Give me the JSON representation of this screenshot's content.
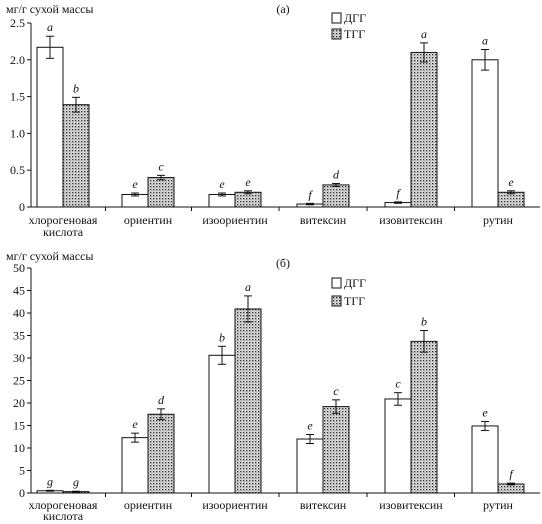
{
  "chart_data": [
    {
      "type": "bar",
      "panel_label": "(а)",
      "ylabel": "мг/г сухой массы",
      "ylim": [
        0,
        2.5
      ],
      "yticks": [
        "0",
        "0.5",
        "1.0",
        "1.5",
        "2.0",
        "2.5"
      ],
      "categories": [
        "хлорогеновая кислота",
        "ориентин",
        "изоориентин",
        "витексин",
        "изовитексин",
        "рутин"
      ],
      "category_lines": [
        [
          "хлорогеновая",
          "кислота"
        ],
        [
          "ориентин"
        ],
        [
          "изоориентин"
        ],
        [
          "витексин"
        ],
        [
          "изовитексин"
        ],
        [
          "рутин"
        ]
      ],
      "legend_position": "top-right",
      "series": [
        {
          "name": "ДГГ",
          "pattern": "white",
          "values": [
            2.17,
            0.17,
            0.17,
            0.04,
            0.06,
            2.0
          ],
          "errors": [
            0.15,
            0.02,
            0.02,
            0.01,
            0.01,
            0.14
          ],
          "letters": [
            "a",
            "e",
            "e",
            "f",
            "f",
            "a"
          ]
        },
        {
          "name": "ТГГ",
          "pattern": "dotted",
          "values": [
            1.39,
            0.4,
            0.2,
            0.3,
            2.1,
            0.2
          ],
          "errors": [
            0.1,
            0.03,
            0.02,
            0.02,
            0.13,
            0.02
          ],
          "letters": [
            "b",
            "c",
            "e",
            "d",
            "a",
            "e"
          ]
        }
      ]
    },
    {
      "type": "bar",
      "panel_label": "(б)",
      "ylabel": "мг/г сухой массы",
      "ylim": [
        0,
        50
      ],
      "yticks": [
        "0",
        "5",
        "10",
        "15",
        "20",
        "25",
        "30",
        "35",
        "40",
        "45",
        "50"
      ],
      "categories": [
        "хлорогеновая кислота",
        "ориентин",
        "изоориентин",
        "витексин",
        "изовитексин",
        "рутин"
      ],
      "category_lines": [
        [
          "хлорогеновая",
          "кислота"
        ],
        [
          "ориентин"
        ],
        [
          "изоориентин"
        ],
        [
          "витексин"
        ],
        [
          "изовитексин"
        ],
        [
          "рутин"
        ]
      ],
      "legend_position": "top-right",
      "series": [
        {
          "name": "ДГГ",
          "pattern": "white",
          "values": [
            0.5,
            12.3,
            30.6,
            12.0,
            20.9,
            14.9
          ],
          "errors": [
            0.1,
            1.0,
            2.0,
            1.0,
            1.4,
            1.0
          ],
          "letters": [
            "g",
            "e",
            "b",
            "e",
            "c",
            "e"
          ]
        },
        {
          "name": "ТГГ",
          "pattern": "dotted",
          "values": [
            0.3,
            17.5,
            40.9,
            19.2,
            33.7,
            2.0
          ],
          "errors": [
            0.1,
            1.2,
            2.9,
            1.5,
            2.4,
            0.2
          ],
          "letters": [
            "g",
            "d",
            "a",
            "c",
            "b",
            "f"
          ]
        }
      ]
    }
  ]
}
